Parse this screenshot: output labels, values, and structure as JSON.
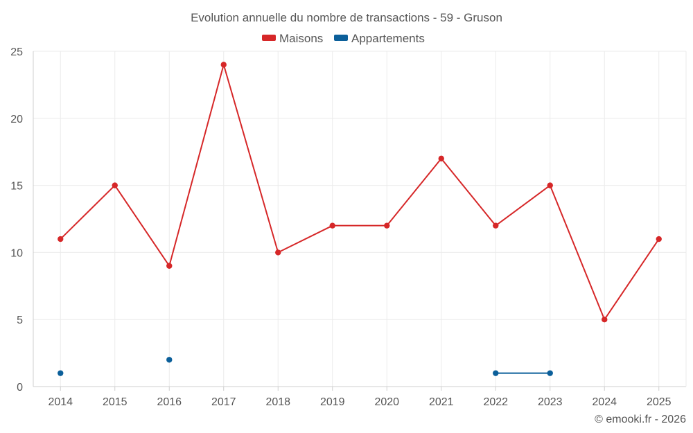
{
  "chart_data": {
    "type": "line",
    "title": "Evolution annuelle du nombre de transactions - 59 - Gruson",
    "categories": [
      "2014",
      "2015",
      "2016",
      "2017",
      "2018",
      "2019",
      "2020",
      "2021",
      "2022",
      "2023",
      "2024",
      "2025"
    ],
    "series": [
      {
        "name": "Maisons",
        "color": "#d62728",
        "values": [
          11,
          15,
          9,
          24,
          10,
          12,
          12,
          17,
          12,
          15,
          5,
          11
        ]
      },
      {
        "name": "Appartements",
        "color": "#0b5f9a",
        "values": [
          1,
          null,
          2,
          null,
          null,
          null,
          null,
          null,
          1,
          1,
          null,
          null
        ]
      }
    ],
    "ylim": [
      0,
      25
    ],
    "yticks": [
      0,
      5,
      10,
      15,
      20,
      25
    ],
    "grid": true,
    "legend": "top-center",
    "xlabel": "",
    "ylabel": ""
  },
  "credit": "© emooki.fr - 2026"
}
